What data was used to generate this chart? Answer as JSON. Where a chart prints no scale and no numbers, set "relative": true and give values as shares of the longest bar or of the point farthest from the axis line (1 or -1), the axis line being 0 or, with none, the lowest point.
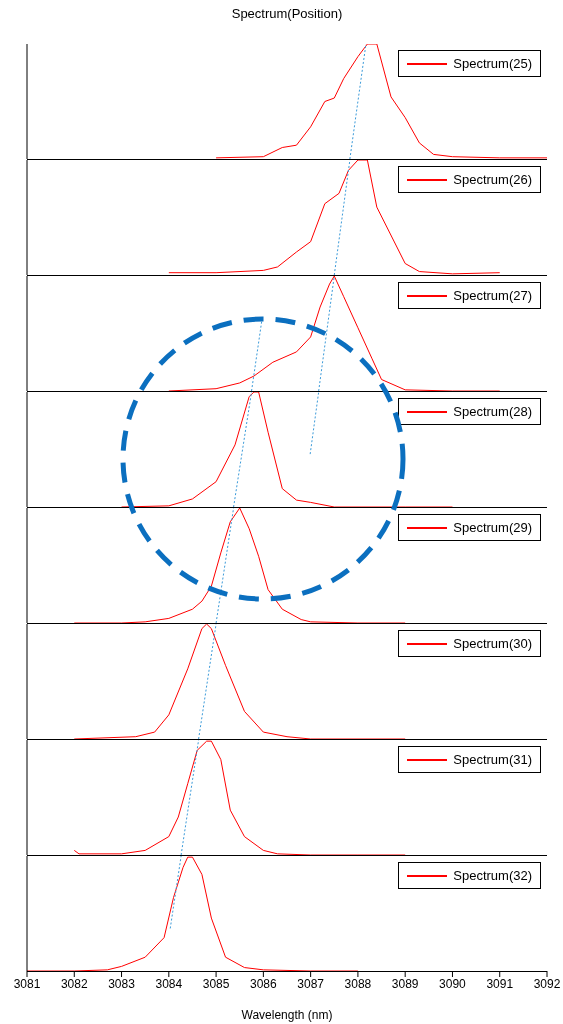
{
  "chart_data": [
    {
      "type": "line",
      "title": "Spectrum(Position)",
      "relative": true,
      "xlim": [
        3081,
        3092
      ],
      "xticks": [
        3081,
        3082,
        3083,
        3084,
        3085,
        3086,
        3087,
        3088,
        3089,
        3090,
        3091,
        3092
      ],
      "tick_labels": false,
      "legend": "top right",
      "series": [
        {
          "name": "Spectrum(25)",
          "color": "#ff0000",
          "x": [
            3085,
            3086,
            3086.4,
            3086.7,
            3087,
            3087.3,
            3087.5,
            3087.7,
            3088,
            3088.2,
            3088.4,
            3088.7,
            3089,
            3089.3,
            3089.6,
            3090,
            3091,
            3092
          ],
          "values": [
            0.01,
            0.02,
            0.1,
            0.12,
            0.28,
            0.5,
            0.53,
            0.7,
            0.89,
            1,
            1,
            0.54,
            0.36,
            0.14,
            0.04,
            0.02,
            0.01,
            0.01
          ]
        },
        {
          "color": "#3a9ad9",
          "line_style": "dotted",
          "x": [
            3087.83,
            3088.17
          ],
          "values": [
            0,
            1
          ]
        }
      ]
    },
    {
      "type": "line",
      "relative": true,
      "xlim": [
        3081,
        3092
      ],
      "xticks": [
        3081,
        3082,
        3083,
        3084,
        3085,
        3086,
        3087,
        3088,
        3089,
        3090,
        3091,
        3092
      ],
      "tick_labels": false,
      "legend": "top right",
      "series": [
        {
          "name": "Spectrum(26)",
          "color": "#ff0000",
          "x": [
            3084,
            3085,
            3086,
            3086.3,
            3086.7,
            3087,
            3087.3,
            3087.6,
            3087.8,
            3088,
            3088.2,
            3088.4,
            3089,
            3089.3,
            3090,
            3091
          ],
          "values": [
            0.02,
            0.02,
            0.04,
            0.07,
            0.2,
            0.29,
            0.62,
            0.71,
            0.91,
            1,
            1,
            0.59,
            0.1,
            0.03,
            0.01,
            0.02
          ]
        },
        {
          "color": "#3a9ad9",
          "line_style": "dotted",
          "x": [
            3087.5,
            3087.83
          ],
          "values": [
            0,
            1
          ]
        }
      ]
    },
    {
      "type": "line",
      "relative": true,
      "xlim": [
        3081,
        3092
      ],
      "xticks": [
        3081,
        3082,
        3083,
        3084,
        3085,
        3086,
        3087,
        3088,
        3089,
        3090,
        3091,
        3092
      ],
      "tick_labels": false,
      "legend": "top right",
      "series": [
        {
          "name": "Spectrum(27)",
          "color": "#ff0000",
          "x": [
            3084,
            3085,
            3085.5,
            3085.8,
            3086.2,
            3086.7,
            3087,
            3087.2,
            3087.4,
            3087.5,
            3087.7,
            3088,
            3088.3,
            3088.5,
            3089,
            3090,
            3091
          ],
          "values": [
            0,
            0.02,
            0.07,
            0.13,
            0.25,
            0.34,
            0.47,
            0.73,
            0.93,
            1,
            0.82,
            0.55,
            0.28,
            0.1,
            0.01,
            0,
            0
          ]
        },
        {
          "color": "#3a9ad9",
          "line_style": "dotted",
          "x": [
            3087.17,
            3087.5
          ],
          "values": [
            0,
            1
          ]
        },
        {
          "color": "#3a9ad9",
          "line_style": "dotted",
          "x": [
            3085.75,
            3085.97
          ],
          "values": [
            0,
            0.62
          ]
        }
      ]
    },
    {
      "type": "line",
      "relative": true,
      "xlim": [
        3081,
        3092
      ],
      "xticks": [
        3081,
        3082,
        3083,
        3084,
        3085,
        3086,
        3087,
        3088,
        3089,
        3090,
        3091,
        3092
      ],
      "tick_labels": false,
      "legend": "top right",
      "series": [
        {
          "name": "Spectrum(28)",
          "color": "#ff0000",
          "x": [
            3083,
            3084,
            3084.5,
            3085,
            3085.4,
            3085.7,
            3085.8,
            3085.9,
            3086.1,
            3086.4,
            3086.7,
            3087,
            3087.5,
            3089,
            3090
          ],
          "values": [
            0,
            0.01,
            0.07,
            0.22,
            0.54,
            0.96,
            1,
            1,
            0.65,
            0.16,
            0.06,
            0.04,
            0,
            0,
            0
          ]
        },
        {
          "color": "#3a9ad9",
          "line_style": "dotted",
          "x": [
            3086.99,
            3087.17
          ],
          "values": [
            0.46,
            1
          ]
        },
        {
          "color": "#3a9ad9",
          "line_style": "dotted",
          "x": [
            3085.37,
            3085.75
          ],
          "values": [
            0,
            1
          ]
        }
      ]
    },
    {
      "type": "line",
      "relative": true,
      "xlim": [
        3081,
        3092
      ],
      "xticks": [
        3081,
        3082,
        3083,
        3084,
        3085,
        3086,
        3087,
        3088,
        3089,
        3090,
        3091,
        3092
      ],
      "tick_labels": false,
      "legend": "top right",
      "series": [
        {
          "name": "Spectrum(29)",
          "color": "#ff0000",
          "x": [
            3082,
            3083,
            3083.5,
            3084,
            3084.5,
            3084.7,
            3084.9,
            3085.1,
            3085.3,
            3085.5,
            3085.7,
            3085.9,
            3086.1,
            3086.4,
            3086.8,
            3087,
            3088,
            3089
          ],
          "values": [
            0,
            0,
            0.01,
            0.04,
            0.12,
            0.19,
            0.32,
            0.61,
            0.88,
            1,
            0.82,
            0.58,
            0.29,
            0.12,
            0.03,
            0.01,
            0,
            0
          ]
        },
        {
          "color": "#3a9ad9",
          "line_style": "dotted",
          "x": [
            3085,
            3085.37
          ],
          "values": [
            0,
            1
          ]
        }
      ]
    },
    {
      "type": "line",
      "relative": true,
      "xlim": [
        3081,
        3092
      ],
      "xticks": [
        3081,
        3082,
        3083,
        3084,
        3085,
        3086,
        3087,
        3088,
        3089,
        3090,
        3091,
        3092
      ],
      "tick_labels": false,
      "legend": "top right",
      "series": [
        {
          "name": "Spectrum(30)",
          "color": "#ff0000",
          "x": [
            3082,
            3083.3,
            3083.7,
            3084,
            3084.4,
            3084.7,
            3084.8,
            3084.9,
            3085.2,
            3085.6,
            3086,
            3086.5,
            3087,
            3089
          ],
          "values": [
            0,
            0.02,
            0.06,
            0.21,
            0.61,
            0.96,
            1,
            0.96,
            0.64,
            0.24,
            0.06,
            0.02,
            0,
            0
          ]
        },
        {
          "color": "#3a9ad9",
          "line_style": "dotted",
          "x": [
            3084.63,
            3085
          ],
          "values": [
            0,
            1
          ]
        }
      ]
    },
    {
      "type": "line",
      "relative": true,
      "xlim": [
        3081,
        3092
      ],
      "xticks": [
        3081,
        3082,
        3083,
        3084,
        3085,
        3086,
        3087,
        3088,
        3089,
        3090,
        3091,
        3092
      ],
      "tick_labels": false,
      "legend": "top right",
      "series": [
        {
          "name": "Spectrum(31)",
          "color": "#ff0000",
          "x": [
            3082,
            3082.1,
            3083,
            3083.5,
            3084,
            3084.2,
            3084.4,
            3084.6,
            3084.8,
            3084.9,
            3085.1,
            3085.3,
            3085.6,
            3086,
            3086.3,
            3087,
            3088,
            3089
          ],
          "values": [
            0.04,
            0.01,
            0.01,
            0.04,
            0.16,
            0.33,
            0.62,
            0.91,
            0.99,
            0.99,
            0.83,
            0.39,
            0.16,
            0.04,
            0.01,
            0,
            0,
            0
          ]
        },
        {
          "color": "#3a9ad9",
          "line_style": "dotted",
          "x": [
            3084.26,
            3084.63
          ],
          "values": [
            0,
            1
          ]
        }
      ]
    },
    {
      "type": "line",
      "relative": true,
      "xlim": [
        3081,
        3092
      ],
      "xticks": [
        3081,
        3082,
        3083,
        3084,
        3085,
        3086,
        3087,
        3088,
        3089,
        3090,
        3091,
        3092
      ],
      "tick_labels": "x",
      "xlabel": "Wavelength (nm)",
      "legend": "top right",
      "series": [
        {
          "name": "Spectrum(32)",
          "color": "#ff0000",
          "x": [
            3081,
            3082,
            3082.7,
            3083,
            3083.5,
            3083.9,
            3084.1,
            3084.3,
            3084.4,
            3084.5,
            3084.7,
            3084.9,
            3085.2,
            3085.6,
            3086,
            3087,
            3088
          ],
          "values": [
            0,
            0,
            0.01,
            0.04,
            0.12,
            0.29,
            0.64,
            0.9,
            0.99,
            0.99,
            0.84,
            0.46,
            0.12,
            0.03,
            0.01,
            0,
            0
          ]
        },
        {
          "color": "#3a9ad9",
          "line_style": "dotted",
          "x": [
            3084.03,
            3084.26
          ],
          "values": [
            0.37,
            1
          ]
        }
      ]
    }
  ]
}
